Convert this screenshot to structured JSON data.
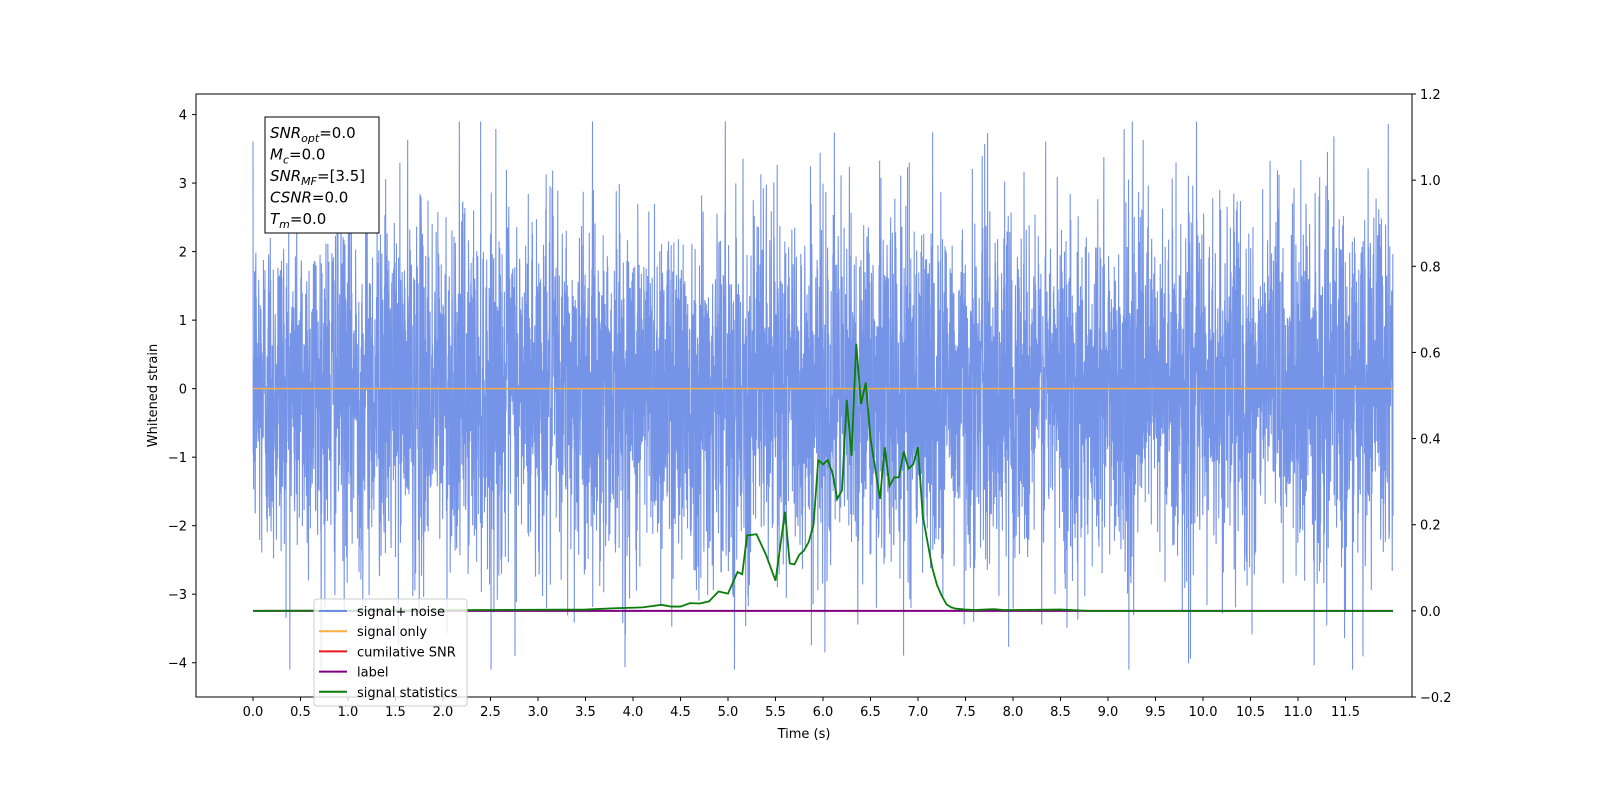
{
  "chart_data": {
    "type": "line",
    "xlabel": "Time (s)",
    "ylabel": "Whitened strain",
    "xlim": [
      -0.6,
      12.2
    ],
    "ylim": [
      -4.5,
      4.3
    ],
    "y2lim": [
      -0.2,
      1.2
    ],
    "x_ticks": [
      "0.0",
      "0.5",
      "1.0",
      "1.5",
      "2.0",
      "2.5",
      "3.0",
      "3.5",
      "4.0",
      "4.5",
      "5.0",
      "5.5",
      "6.0",
      "6.5",
      "7.0",
      "7.5",
      "8.0",
      "8.5",
      "9.0",
      "9.5",
      "10.0",
      "10.5",
      "11.0",
      "11.5"
    ],
    "y_ticks": [
      "4",
      "3",
      "2",
      "1",
      "0",
      "−1",
      "−2",
      "−3",
      "−4"
    ],
    "y2_ticks": [
      "1.2",
      "1.0",
      "0.8",
      "0.6",
      "0.4",
      "0.2",
      "0.0",
      "−0.2"
    ],
    "x_range": [
      0.0,
      12.0
    ],
    "noise_amplitude": {
      "typical": 1.3,
      "max_peak": 3.9,
      "min_trough": -4.1
    },
    "legend_position": "lower-left",
    "colors": {
      "signal_noise": "#6f8ee6",
      "signal_only": "#f5b041",
      "cumulative_snr": "#e8191c",
      "label": "#800080",
      "signal_statistics": "#0a7d0a"
    },
    "series": [
      {
        "name": "signal+ noise",
        "axis": "left",
        "style": "noise",
        "color": "#6f8ee6",
        "amplitude": 1.3
      },
      {
        "name": "signal only",
        "axis": "left",
        "x": [
          0.0,
          12.0
        ],
        "y": [
          0.0,
          0.0
        ],
        "color": "#f5b041"
      },
      {
        "name": "cumilative SNR",
        "axis": "right",
        "x": [],
        "y": [],
        "color": "#e8191c"
      },
      {
        "name": "label",
        "axis": "right",
        "x": [
          0.0,
          12.0
        ],
        "y": [
          0.0,
          0.0
        ],
        "color": "#800080"
      },
      {
        "name": "signal statistics",
        "axis": "right",
        "color": "#0a7d0a",
        "x": [
          0.0,
          3.5,
          3.8,
          4.1,
          4.3,
          4.4,
          4.5,
          4.6,
          4.7,
          4.8,
          4.9,
          5.0,
          5.1,
          5.15,
          5.2,
          5.3,
          5.4,
          5.5,
          5.6,
          5.65,
          5.7,
          5.75,
          5.8,
          5.85,
          5.9,
          5.95,
          6.0,
          6.05,
          6.1,
          6.15,
          6.2,
          6.25,
          6.3,
          6.35,
          6.4,
          6.45,
          6.5,
          6.55,
          6.6,
          6.65,
          6.7,
          6.75,
          6.8,
          6.85,
          6.9,
          6.95,
          7.0,
          7.05,
          7.1,
          7.15,
          7.2,
          7.25,
          7.3,
          7.35,
          7.4,
          7.5,
          7.6,
          7.7,
          7.8,
          7.9,
          8.0,
          8.5,
          8.8,
          9.0,
          9.2,
          12.0
        ],
        "y": [
          0.0,
          0.003,
          0.006,
          0.008,
          0.014,
          0.01,
          0.01,
          0.018,
          0.017,
          0.022,
          0.045,
          0.04,
          0.09,
          0.085,
          0.175,
          0.178,
          0.13,
          0.07,
          0.23,
          0.11,
          0.108,
          0.13,
          0.14,
          0.16,
          0.2,
          0.35,
          0.34,
          0.35,
          0.32,
          0.26,
          0.28,
          0.49,
          0.36,
          0.62,
          0.48,
          0.53,
          0.4,
          0.33,
          0.26,
          0.38,
          0.29,
          0.31,
          0.31,
          0.37,
          0.33,
          0.34,
          0.38,
          0.22,
          0.16,
          0.1,
          0.06,
          0.035,
          0.015,
          0.008,
          0.005,
          0.003,
          0.002,
          0.003,
          0.004,
          0.002,
          0.002,
          0.003,
          0.0,
          0.0,
          0.0,
          0.0
        ]
      }
    ],
    "annotations": [
      {
        "id": "snr_opt",
        "label": "SNR",
        "sub": "opt",
        "value": "=0.0"
      },
      {
        "id": "mc",
        "label": "M",
        "sub": "c",
        "value": "=0.0"
      },
      {
        "id": "snr_mf",
        "label": "SNR",
        "sub": "MF",
        "value": "=[3.5]"
      },
      {
        "id": "csnr",
        "label": "CSNR",
        "sub": "",
        "value": "=0.0"
      },
      {
        "id": "tm",
        "label": "T",
        "sub": "m",
        "value": "=0.0"
      }
    ]
  }
}
